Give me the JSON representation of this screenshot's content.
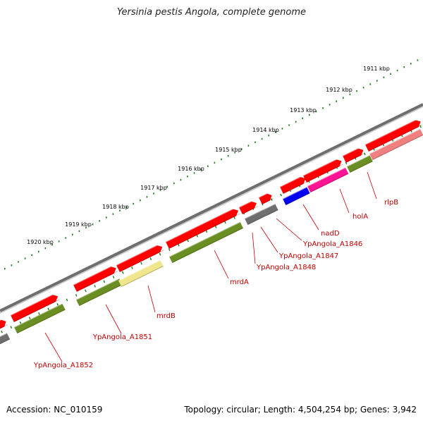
{
  "title": "Yersinia pestis Angola, complete genome",
  "footer": {
    "accession": "Accession: NC_010159",
    "summary": "Topology: circular; Length: 4,504,254 bp; Genes: 3,942"
  },
  "colors": {
    "backbone": "#6e6e6e",
    "feature_red": "#ff0000",
    "feature_green": "#6b8e23",
    "feature_gray": "#6e6e6e",
    "feature_blue": "#0000ee",
    "feature_magenta": "#ff1493",
    "feature_pink": "#f08080",
    "feature_yellow": "#f0e68c",
    "ticks": "#1a7a1a",
    "label": "#c00000"
  },
  "ruler": [
    {
      "label": "1911 kbp"
    },
    {
      "label": "1912 kbp"
    },
    {
      "label": "1913 kbp"
    },
    {
      "label": "1914 kbp"
    },
    {
      "label": "1915 kbp"
    },
    {
      "label": "1916 kbp"
    },
    {
      "label": "1917 kbp"
    },
    {
      "label": "1918 kbp"
    },
    {
      "label": "1919 kbp"
    },
    {
      "label": "1920 kbp"
    }
  ],
  "gene_labels": [
    {
      "name": "rlpB"
    },
    {
      "name": "holA"
    },
    {
      "name": "nadD"
    },
    {
      "name": "YpAngola_A1846"
    },
    {
      "name": "YpAngola_A1847"
    },
    {
      "name": "YpAngola_A1848"
    },
    {
      "name": "mrdA"
    },
    {
      "name": "mrdB"
    },
    {
      "name": "YpAngola_A1851"
    },
    {
      "name": "YpAngola_A1852"
    }
  ]
}
